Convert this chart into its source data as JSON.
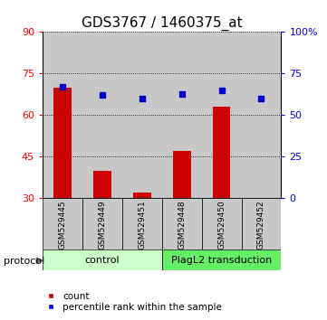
{
  "title": "GDS3767 / 1460375_at",
  "samples": [
    "GSM529445",
    "GSM529449",
    "GSM529451",
    "GSM529448",
    "GSM529450",
    "GSM529452"
  ],
  "red_values": [
    70,
    40,
    32,
    47,
    63,
    30
  ],
  "blue_values": [
    67,
    62,
    60,
    63,
    65,
    60
  ],
  "left_ylim": [
    30,
    90
  ],
  "left_yticks": [
    30,
    45,
    60,
    75,
    90
  ],
  "right_ylim": [
    0,
    100
  ],
  "right_yticks": [
    0,
    25,
    50,
    75,
    100
  ],
  "right_yticklabels": [
    "0",
    "25",
    "50",
    "75",
    "100%"
  ],
  "n_control": 3,
  "n_plagL2": 3,
  "control_label": "control",
  "plagL2_label": "PlagL2 transduction",
  "protocol_label": "protocol",
  "legend_count": "count",
  "legend_percentile": "percentile rank within the sample",
  "bar_color": "#cc0000",
  "dot_color": "#0000cc",
  "control_bg": "#ccffcc",
  "plagL2_bg": "#66ee66",
  "sample_bg": "#c8c8c8",
  "title_fontsize": 11,
  "tick_fontsize": 8,
  "sample_fontsize": 6.5,
  "group_fontsize": 8,
  "legend_fontsize": 7.5,
  "protocol_fontsize": 8
}
